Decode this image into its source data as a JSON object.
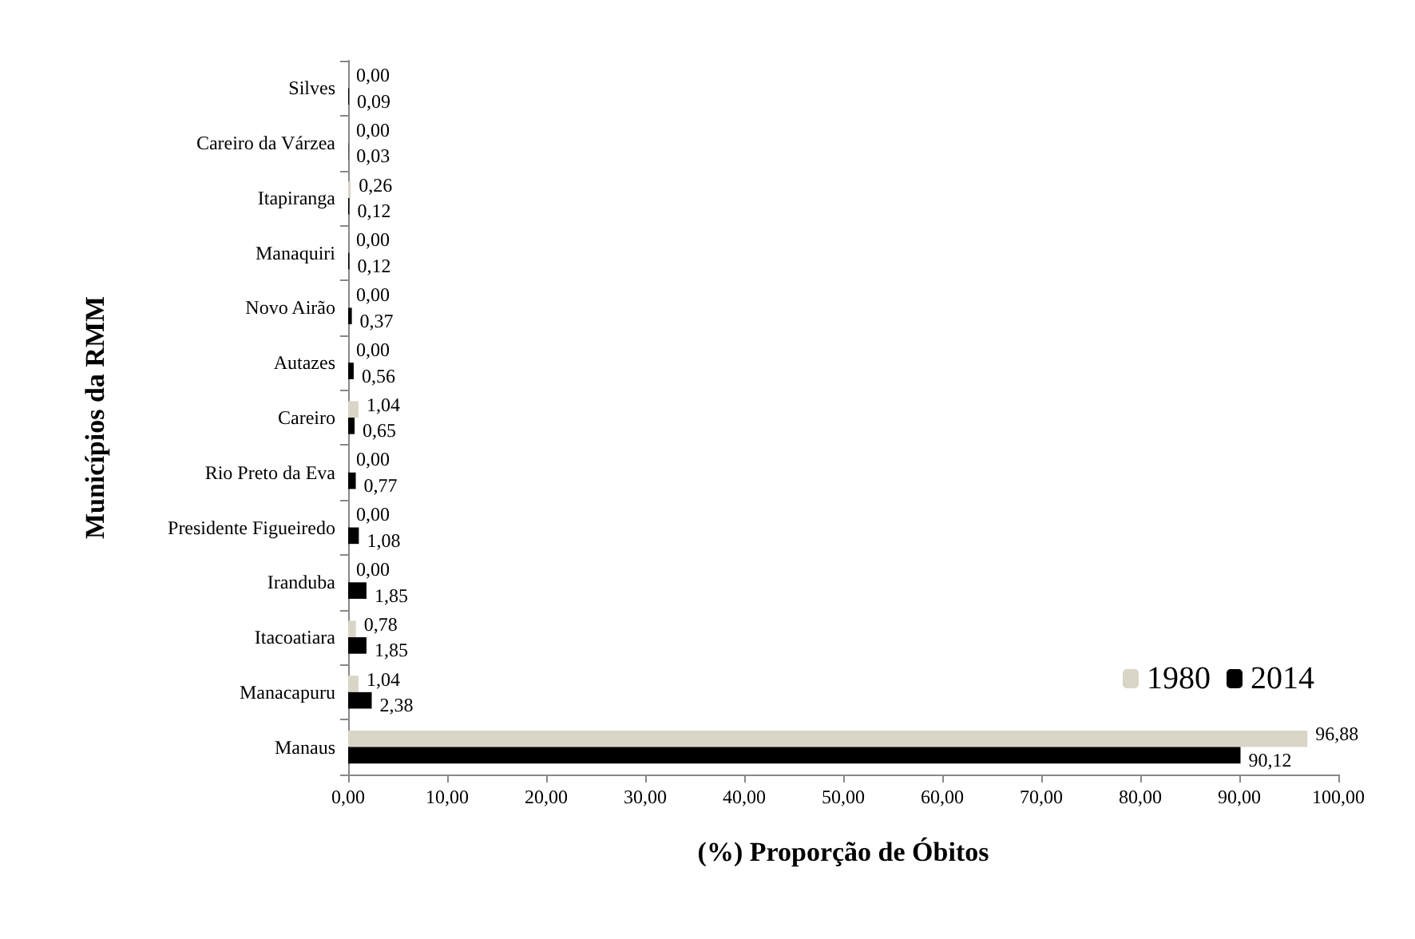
{
  "chart_data": {
    "type": "bar",
    "orientation": "horizontal",
    "xlabel": "(%) Proporção de Óbitos",
    "ylabel": "Municípios da RMM",
    "categories": [
      "Silves",
      "Careiro da Várzea",
      "Itapiranga",
      "Manaquiri",
      "Novo Airão",
      "Autazes",
      "Careiro",
      "Rio Preto da Eva",
      "Presidente Figueiredo",
      "Iranduba",
      "Itacoatiara",
      "Manacapuru",
      "Manaus"
    ],
    "series": [
      {
        "name": "1980",
        "color": "#d9d5c7",
        "values": [
          0,
          0,
          0.26,
          0,
          0,
          0,
          1.04,
          0,
          0,
          0,
          0.78,
          1.04,
          96.88
        ],
        "value_labels": [
          "0,00",
          "0,00",
          "0,26",
          "0,00",
          "0,00",
          "0,00",
          "1,04",
          "0,00",
          "0,00",
          "0,00",
          "0,78",
          "1,04",
          "96,88"
        ]
      },
      {
        "name": "2014",
        "color": "#000000",
        "values": [
          0.09,
          0.03,
          0.12,
          0.12,
          0.37,
          0.56,
          0.65,
          0.77,
          1.08,
          1.85,
          1.85,
          2.38,
          90.12
        ],
        "value_labels": [
          "0,09",
          "0,03",
          "0,12",
          "0,12",
          "0,37",
          "0,56",
          "0,65",
          "0,77",
          "1,08",
          "1,85",
          "1,85",
          "2,38",
          "90,12"
        ]
      }
    ],
    "xlim": [
      0,
      100
    ],
    "xticks": [
      {
        "value": 0,
        "label": "0,00"
      },
      {
        "value": 10,
        "label": "10,00"
      },
      {
        "value": 20,
        "label": "20,00"
      },
      {
        "value": 30,
        "label": "30,00"
      },
      {
        "value": 40,
        "label": "40,00"
      },
      {
        "value": 50,
        "label": "50,00"
      },
      {
        "value": 60,
        "label": "60,00"
      },
      {
        "value": 70,
        "label": "70,00"
      },
      {
        "value": 80,
        "label": "80,00"
      },
      {
        "value": 90,
        "label": "90,00"
      },
      {
        "value": 100,
        "label": "100,00"
      }
    ],
    "legend": "bottom right",
    "grid": false
  }
}
